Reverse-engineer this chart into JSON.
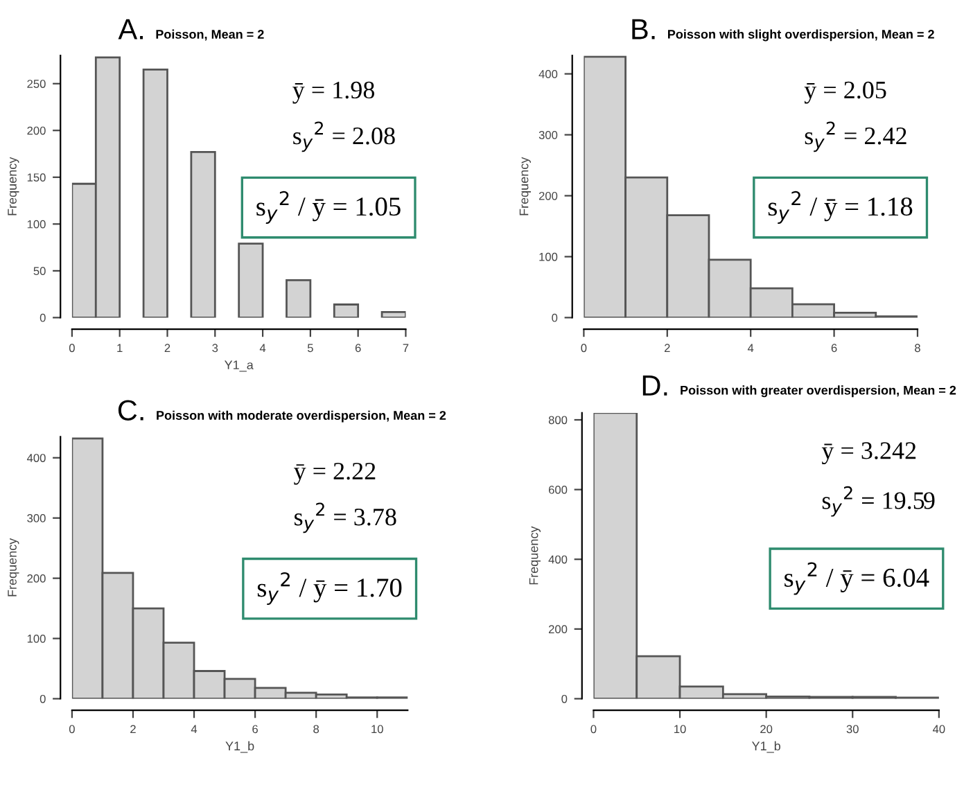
{
  "chart_data": [
    {
      "type": "histogram",
      "title": "A.",
      "subtitle": "Poisson, Mean = 2",
      "xlabel": "Y1_a",
      "ylabel": "Frequency",
      "color": "#d3d3d3",
      "bins": [
        0,
        0.5,
        1,
        1.5,
        2,
        2.5,
        3,
        3.5,
        4,
        4.5,
        5,
        5.5,
        6,
        6.5,
        7
      ],
      "values": [
        143,
        278,
        0,
        265,
        0,
        177,
        0,
        79,
        0,
        40,
        0,
        14,
        0,
        6
      ],
      "xlim": [
        0,
        7
      ],
      "ylim": [
        0,
        280
      ],
      "xticks": [
        0,
        1,
        2,
        3,
        4,
        5,
        6,
        7
      ],
      "yticks": [
        0,
        50,
        100,
        150,
        200,
        250
      ],
      "annotations": [
        "ȳ = 1.98",
        "s$_{y}$$^{2}$ = 2.08",
        "s$_{y}$$^{2}$ / ȳ = 1.05"
      ]
    },
    {
      "type": "histogram",
      "title": "B.",
      "subtitle": "Poisson with slight overdispersion, Mean = 2",
      "ylabel": "Frequency",
      "color": "#d3d3d3",
      "bins": [
        0,
        1,
        2,
        3,
        4,
        5,
        6,
        7,
        8
      ],
      "values": [
        428,
        230,
        168,
        95,
        48,
        22,
        8,
        2
      ],
      "xlim": [
        0,
        8
      ],
      "ylim": [
        0,
        430
      ],
      "xticks": [
        0,
        2,
        4,
        6,
        8
      ],
      "yticks": [
        0,
        100,
        200,
        300,
        400
      ],
      "annotations": [
        "ȳ = 2.05",
        "s$_{y}$$^{2}$ = 2.42",
        "s$_{y}$$^{2}$ / ȳ = 1.18"
      ]
    },
    {
      "type": "histogram",
      "title": "C.",
      "subtitle": "Poisson with moderate overdispersion, Mean = 2",
      "xlabel": "Y1_b",
      "ylabel": "Frequency",
      "color": "#d3d3d3",
      "bins": [
        0,
        1,
        2,
        3,
        4,
        5,
        6,
        7,
        8,
        9,
        10,
        11
      ],
      "values": [
        432,
        209,
        150,
        93,
        46,
        33,
        18,
        10,
        7,
        2,
        2
      ],
      "xlim": [
        0,
        11
      ],
      "ylim": [
        0,
        435
      ],
      "xticks": [
        0,
        2,
        4,
        6,
        8,
        10
      ],
      "yticks": [
        0,
        100,
        200,
        300,
        400
      ],
      "annotations": [
        "ȳ = 2.22",
        "s$_{y}$$^{2}$ = 3.78",
        "s$_{y}$$^{2}$ / ȳ = 1.70"
      ]
    },
    {
      "type": "histogram",
      "title": "D.",
      "subtitle": "Poisson with greater overdispersion, Mean = 2",
      "xlabel": "Y1_b",
      "ylabel": "Frequency",
      "color": "#d3d3d3",
      "bins": [
        0,
        5,
        10,
        15,
        20,
        25,
        30,
        35,
        40
      ],
      "values": [
        820,
        122,
        35,
        13,
        6,
        5,
        5,
        3
      ],
      "xlim": [
        0,
        40
      ],
      "ylim": [
        0,
        820
      ],
      "xticks": [
        0,
        10,
        20,
        30,
        40
      ],
      "yticks": [
        0,
        200,
        400,
        600,
        800
      ],
      "annotations": [
        "ȳ = 3.242",
        "s$_{y}$$^{2}$ = 19.59",
        "s$_{y}$$^{2}$ / ȳ = 6.04"
      ]
    }
  ]
}
